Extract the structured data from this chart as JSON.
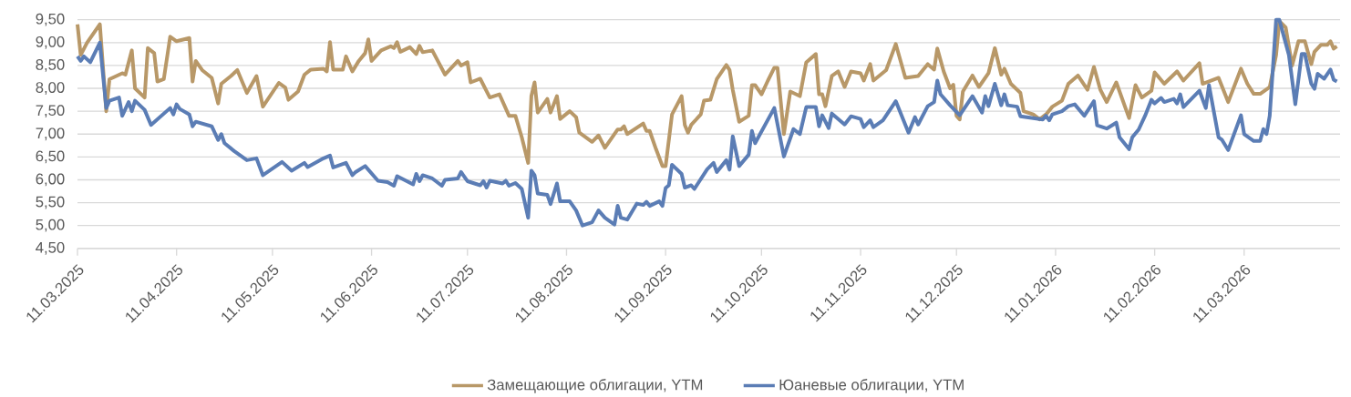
{
  "chart_data": {
    "type": "line",
    "xlim": [
      "2025-03-11",
      "2026-04-10"
    ],
    "ylim": [
      4.5,
      9.5
    ],
    "xticks": [
      {
        "value": "2025-03-11",
        "label": "11.03.2025"
      },
      {
        "value": "2025-04-11",
        "label": "11.04.2025"
      },
      {
        "value": "2025-05-11",
        "label": "11.05.2025"
      },
      {
        "value": "2025-06-11",
        "label": "11.06.2025"
      },
      {
        "value": "2025-07-11",
        "label": "11.07.2025"
      },
      {
        "value": "2025-08-11",
        "label": "11.08.2025"
      },
      {
        "value": "2025-09-11",
        "label": "11.09.2025"
      },
      {
        "value": "2025-10-11",
        "label": "11.10.2025"
      },
      {
        "value": "2025-11-11",
        "label": "11.11.2025"
      },
      {
        "value": "2025-12-11",
        "label": "11.12.2025"
      },
      {
        "value": "2026-01-11",
        "label": "11.01.2026"
      },
      {
        "value": "2026-02-11",
        "label": "11.02.2026"
      },
      {
        "value": "2026-03-11",
        "label": "11.03.2026"
      }
    ],
    "yticks": [
      {
        "value": 4.5,
        "label": "4,50"
      },
      {
        "value": 5.0,
        "label": "5,00"
      },
      {
        "value": 5.5,
        "label": "5,50"
      },
      {
        "value": 6.0,
        "label": "6,00"
      },
      {
        "value": 6.5,
        "label": "6,50"
      },
      {
        "value": 7.0,
        "label": "7,00"
      },
      {
        "value": 7.5,
        "label": "7,50"
      },
      {
        "value": 8.0,
        "label": "8,00"
      },
      {
        "value": 8.5,
        "label": "8,50"
      },
      {
        "value": 9.0,
        "label": "9,00"
      },
      {
        "value": 9.5,
        "label": "9,50"
      }
    ],
    "grid": "y",
    "legend": "bottom",
    "marker": "none",
    "line_style": "solid",
    "series": [
      {
        "name": "Замещающие облигации, YTM",
        "color": "#b89868",
        "x": [
          "2025-03-11",
          "2025-03-12",
          "2025-03-14",
          "2025-03-18",
          "2025-03-20",
          "2025-03-21",
          "2025-03-25",
          "2025-03-26",
          "2025-03-28",
          "2025-03-29",
          "2025-04-01",
          "2025-04-02",
          "2025-04-04",
          "2025-04-05",
          "2025-04-07",
          "2025-04-09",
          "2025-04-11",
          "2025-04-15",
          "2025-04-16",
          "2025-04-17",
          "2025-04-19",
          "2025-04-22",
          "2025-04-24",
          "2025-04-25",
          "2025-04-28",
          "2025-04-30",
          "2025-05-03",
          "2025-05-06",
          "2025-05-08",
          "2025-05-13",
          "2025-05-15",
          "2025-05-16",
          "2025-05-19",
          "2025-05-21",
          "2025-05-23",
          "2025-05-27",
          "2025-05-28",
          "2025-05-29",
          "2025-05-30",
          "2025-06-02",
          "2025-06-03",
          "2025-06-05",
          "2025-06-07",
          "2025-06-09",
          "2025-06-10",
          "2025-06-11",
          "2025-06-14",
          "2025-06-17",
          "2025-06-18",
          "2025-06-19",
          "2025-06-20",
          "2025-06-23",
          "2025-06-25",
          "2025-06-26",
          "2025-06-27",
          "2025-06-30",
          "2025-07-04",
          "2025-07-08",
          "2025-07-09",
          "2025-07-11",
          "2025-07-12",
          "2025-07-15",
          "2025-07-18",
          "2025-07-21",
          "2025-07-24",
          "2025-07-26",
          "2025-07-28",
          "2025-07-30",
          "2025-07-31",
          "2025-08-01",
          "2025-08-02",
          "2025-08-05",
          "2025-08-06",
          "2025-08-08",
          "2025-08-09",
          "2025-08-12",
          "2025-08-14",
          "2025-08-15",
          "2025-08-19",
          "2025-08-21",
          "2025-08-23",
          "2025-08-27",
          "2025-08-28",
          "2025-08-29",
          "2025-08-30",
          "2025-09-04",
          "2025-09-05",
          "2025-09-06",
          "2025-09-08",
          "2025-09-10",
          "2025-09-11",
          "2025-09-13",
          "2025-09-16",
          "2025-09-17",
          "2025-09-18",
          "2025-09-19",
          "2025-09-22",
          "2025-09-23",
          "2025-09-25",
          "2025-09-27",
          "2025-09-30",
          "2025-10-01",
          "2025-10-02",
          "2025-10-04",
          "2025-10-07",
          "2025-10-08",
          "2025-10-09",
          "2025-10-11",
          "2025-10-13",
          "2025-10-15",
          "2025-10-16",
          "2025-10-18",
          "2025-10-20",
          "2025-10-23",
          "2025-10-25",
          "2025-10-28",
          "2025-10-29",
          "2025-10-30",
          "2025-10-31",
          "2025-11-02",
          "2025-11-04",
          "2025-11-06",
          "2025-11-08",
          "2025-11-11",
          "2025-11-12",
          "2025-11-14",
          "2025-11-15",
          "2025-11-19",
          "2025-11-22",
          "2025-11-25",
          "2025-11-29",
          "2025-12-02",
          "2025-12-04",
          "2025-12-05",
          "2025-12-07",
          "2025-12-09",
          "2025-12-10",
          "2025-12-11",
          "2025-12-12",
          "2025-12-13",
          "2025-12-16",
          "2025-12-18",
          "2025-12-19",
          "2025-12-21",
          "2025-12-23",
          "2025-12-25",
          "2025-12-26",
          "2025-12-28",
          "2025-12-31",
          "2026-01-01",
          "2026-01-04",
          "2026-01-06",
          "2026-01-08",
          "2026-01-10",
          "2026-01-13",
          "2026-01-15",
          "2026-01-18",
          "2026-01-21",
          "2026-01-23",
          "2026-01-25",
          "2026-01-27",
          "2026-01-30",
          "2026-02-03",
          "2026-02-05",
          "2026-02-07",
          "2026-02-10",
          "2026-02-11",
          "2026-02-14",
          "2026-02-18",
          "2026-02-20",
          "2026-02-25",
          "2026-02-26",
          "2026-03-03",
          "2026-03-06",
          "2026-03-10",
          "2026-03-12",
          "2026-03-14",
          "2026-03-16",
          "2026-03-19",
          "2026-03-21",
          "2026-03-22",
          "2026-03-24",
          "2026-03-26",
          "2026-03-28",
          "2026-03-30",
          "2026-04-01",
          "2026-04-02",
          "2026-04-04",
          "2026-04-06",
          "2026-04-07",
          "2026-04-08",
          "2026-04-09"
        ],
        "values": [
          9.4,
          8.73,
          9.0,
          9.4,
          7.5,
          8.2,
          8.33,
          8.3,
          8.83,
          8.0,
          7.8,
          8.88,
          8.77,
          8.15,
          8.2,
          9.13,
          9.03,
          9.1,
          8.15,
          8.6,
          8.4,
          8.23,
          7.67,
          8.1,
          8.27,
          8.4,
          7.9,
          8.27,
          7.6,
          8.12,
          8.02,
          7.75,
          7.93,
          8.3,
          8.41,
          8.43,
          8.37,
          9.01,
          8.41,
          8.41,
          8.7,
          8.37,
          8.6,
          8.77,
          9.07,
          8.6,
          8.83,
          8.92,
          8.88,
          9.01,
          8.8,
          8.9,
          8.75,
          8.93,
          8.79,
          8.83,
          8.3,
          8.6,
          8.5,
          8.57,
          8.13,
          8.21,
          7.8,
          7.87,
          7.4,
          7.4,
          6.93,
          6.37,
          7.83,
          8.13,
          7.47,
          7.77,
          7.47,
          7.83,
          7.33,
          7.5,
          7.37,
          7.03,
          6.83,
          6.97,
          6.7,
          7.1,
          7.1,
          7.17,
          7.0,
          7.23,
          7.07,
          7.07,
          6.67,
          6.3,
          6.3,
          7.43,
          7.83,
          7.2,
          7.03,
          7.2,
          7.43,
          7.73,
          7.75,
          8.2,
          8.51,
          8.4,
          7.97,
          7.27,
          7.4,
          8.07,
          8.07,
          7.87,
          8.17,
          8.45,
          8.45,
          7.0,
          7.93,
          7.83,
          8.57,
          8.75,
          7.87,
          7.87,
          7.61,
          8.27,
          8.37,
          8.03,
          8.37,
          8.33,
          8.17,
          8.53,
          8.17,
          8.4,
          8.97,
          8.23,
          8.27,
          8.53,
          8.41,
          8.87,
          8.37,
          8.0,
          8.08,
          7.4,
          7.32,
          7.93,
          8.28,
          8.03,
          8.13,
          8.33,
          8.88,
          8.3,
          8.43,
          8.1,
          7.9,
          7.5,
          7.43,
          7.32,
          7.43,
          7.6,
          7.73,
          8.1,
          8.28,
          7.97,
          8.47,
          7.97,
          7.7,
          8.13,
          7.35,
          8.07,
          7.8,
          7.95,
          8.35,
          8.1,
          8.37,
          8.17,
          8.55,
          8.1,
          8.23,
          7.7,
          8.43,
          8.1,
          7.88,
          7.88,
          8.03,
          8.73,
          9.47,
          9.33,
          8.5,
          9.03,
          9.03,
          8.53,
          8.8,
          8.95,
          8.95,
          9.03,
          8.87,
          8.92
        ]
      },
      {
        "name": "Юаневые облигации, YTM",
        "color": "#5b7db5",
        "x": [
          "2025-03-11",
          "2025-03-12",
          "2025-03-13",
          "2025-03-15",
          "2025-03-18",
          "2025-03-20",
          "2025-03-21",
          "2025-03-24",
          "2025-03-25",
          "2025-03-27",
          "2025-03-28",
          "2025-03-29",
          "2025-04-01",
          "2025-04-03",
          "2025-04-09",
          "2025-04-10",
          "2025-04-11",
          "2025-04-12",
          "2025-04-15",
          "2025-04-16",
          "2025-04-17",
          "2025-04-22",
          "2025-04-24",
          "2025-04-25",
          "2025-04-26",
          "2025-04-29",
          "2025-05-03",
          "2025-05-06",
          "2025-05-08",
          "2025-05-14",
          "2025-05-17",
          "2025-05-21",
          "2025-05-22",
          "2025-05-27",
          "2025-05-29",
          "2025-05-30",
          "2025-06-03",
          "2025-06-05",
          "2025-06-06",
          "2025-06-09",
          "2025-06-13",
          "2025-06-16",
          "2025-06-18",
          "2025-06-19",
          "2025-06-24",
          "2025-06-25",
          "2025-06-26",
          "2025-06-27",
          "2025-06-30",
          "2025-07-03",
          "2025-07-04",
          "2025-07-08",
          "2025-07-09",
          "2025-07-11",
          "2025-07-15",
          "2025-07-16",
          "2025-07-17",
          "2025-07-18",
          "2025-07-22",
          "2025-07-23",
          "2025-07-24",
          "2025-07-26",
          "2025-07-28",
          "2025-07-30",
          "2025-07-31",
          "2025-08-01",
          "2025-08-02",
          "2025-08-05",
          "2025-08-06",
          "2025-08-08",
          "2025-08-09",
          "2025-08-12",
          "2025-08-14",
          "2025-08-16",
          "2025-08-19",
          "2025-08-21",
          "2025-08-23",
          "2025-08-26",
          "2025-08-27",
          "2025-08-28",
          "2025-08-30",
          "2025-09-02",
          "2025-09-04",
          "2025-09-05",
          "2025-09-06",
          "2025-09-09",
          "2025-09-10",
          "2025-09-11",
          "2025-09-12",
          "2025-09-13",
          "2025-09-16",
          "2025-09-17",
          "2025-09-19",
          "2025-09-20",
          "2025-09-24",
          "2025-09-26",
          "2025-09-27",
          "2025-09-30",
          "2025-10-01",
          "2025-10-02",
          "2025-10-04",
          "2025-10-07",
          "2025-10-08",
          "2025-10-09",
          "2025-10-15",
          "2025-10-18",
          "2025-10-21",
          "2025-10-23",
          "2025-10-25",
          "2025-10-28",
          "2025-10-29",
          "2025-10-30",
          "2025-11-01",
          "2025-11-02",
          "2025-11-06",
          "2025-11-08",
          "2025-11-11",
          "2025-11-12",
          "2025-11-14",
          "2025-11-15",
          "2025-11-18",
          "2025-11-22",
          "2025-11-26",
          "2025-11-28",
          "2025-11-29",
          "2025-12-02",
          "2025-12-04",
          "2025-12-05",
          "2025-12-06",
          "2025-12-09",
          "2025-12-12",
          "2025-12-16",
          "2025-12-19",
          "2025-12-20",
          "2025-12-21",
          "2025-12-23",
          "2025-12-25",
          "2025-12-26",
          "2025-12-27",
          "2025-12-30",
          "2025-12-31",
          "2026-01-07",
          "2026-01-08",
          "2026-01-09",
          "2026-01-10",
          "2026-01-13",
          "2026-01-15",
          "2026-01-17",
          "2026-01-20",
          "2026-01-23",
          "2026-01-24",
          "2026-01-27",
          "2026-01-30",
          "2026-01-31",
          "2026-02-03",
          "2026-02-04",
          "2026-02-06",
          "2026-02-08",
          "2026-02-10",
          "2026-02-11",
          "2026-02-13",
          "2026-02-14",
          "2026-02-17",
          "2026-02-18",
          "2026-02-19",
          "2026-02-20",
          "2026-02-25",
          "2026-02-27",
          "2026-02-28",
          "2026-03-03",
          "2026-03-04",
          "2026-03-06",
          "2026-03-10",
          "2026-03-11",
          "2026-03-14",
          "2026-03-16",
          "2026-03-17",
          "2026-03-18",
          "2026-03-19",
          "2026-03-21",
          "2026-03-22",
          "2026-03-25",
          "2026-03-27",
          "2026-03-29",
          "2026-03-30",
          "2026-04-01",
          "2026-04-02",
          "2026-04-03",
          "2026-04-05",
          "2026-04-07",
          "2026-04-08",
          "2026-04-09"
        ],
        "values": [
          8.7,
          8.6,
          8.7,
          8.57,
          9.0,
          7.57,
          7.73,
          7.8,
          7.4,
          7.7,
          7.5,
          7.73,
          7.53,
          7.2,
          7.57,
          7.43,
          7.65,
          7.55,
          7.43,
          7.17,
          7.27,
          7.17,
          6.87,
          7.0,
          6.8,
          6.63,
          6.43,
          6.47,
          6.1,
          6.39,
          6.2,
          6.37,
          6.28,
          6.47,
          6.53,
          6.27,
          6.37,
          6.1,
          6.17,
          6.3,
          5.98,
          5.95,
          5.87,
          6.08,
          5.9,
          6.13,
          5.97,
          6.1,
          6.03,
          5.87,
          6.0,
          6.03,
          6.17,
          5.97,
          5.88,
          5.97,
          5.83,
          5.98,
          5.92,
          5.98,
          5.87,
          5.93,
          5.8,
          5.17,
          6.2,
          6.1,
          5.7,
          5.67,
          5.47,
          5.92,
          5.53,
          5.53,
          5.33,
          5.0,
          5.07,
          5.33,
          5.17,
          5.02,
          5.43,
          5.17,
          5.13,
          5.48,
          5.45,
          5.52,
          5.43,
          5.53,
          5.43,
          5.82,
          5.88,
          6.33,
          6.13,
          5.83,
          5.88,
          5.8,
          6.23,
          6.37,
          6.17,
          6.43,
          6.22,
          6.95,
          6.3,
          6.55,
          7.07,
          6.8,
          7.57,
          6.51,
          7.11,
          7.0,
          7.59,
          7.59,
          7.17,
          7.41,
          7.13,
          7.45,
          7.21,
          7.39,
          7.33,
          7.15,
          7.3,
          7.15,
          7.3,
          7.72,
          7.03,
          7.37,
          7.21,
          7.61,
          7.7,
          8.17,
          7.87,
          7.63,
          7.41,
          7.83,
          7.47,
          7.83,
          7.61,
          8.1,
          7.63,
          7.87,
          7.63,
          7.6,
          7.39,
          7.32,
          7.4,
          7.3,
          7.43,
          7.5,
          7.61,
          7.65,
          7.4,
          7.72,
          7.19,
          7.12,
          7.25,
          6.93,
          6.67,
          6.93,
          7.1,
          7.4,
          7.75,
          7.67,
          7.79,
          7.7,
          7.77,
          7.67,
          7.87,
          7.59,
          7.95,
          7.57,
          8.07,
          6.93,
          6.88,
          6.65,
          7.41,
          7.0,
          6.85,
          6.85,
          7.11,
          7.0,
          7.4,
          9.5,
          9.5,
          8.73,
          7.65,
          8.75,
          8.75,
          8.1,
          7.99,
          8.32,
          8.21,
          8.41,
          8.19,
          8.15
        ]
      }
    ]
  }
}
